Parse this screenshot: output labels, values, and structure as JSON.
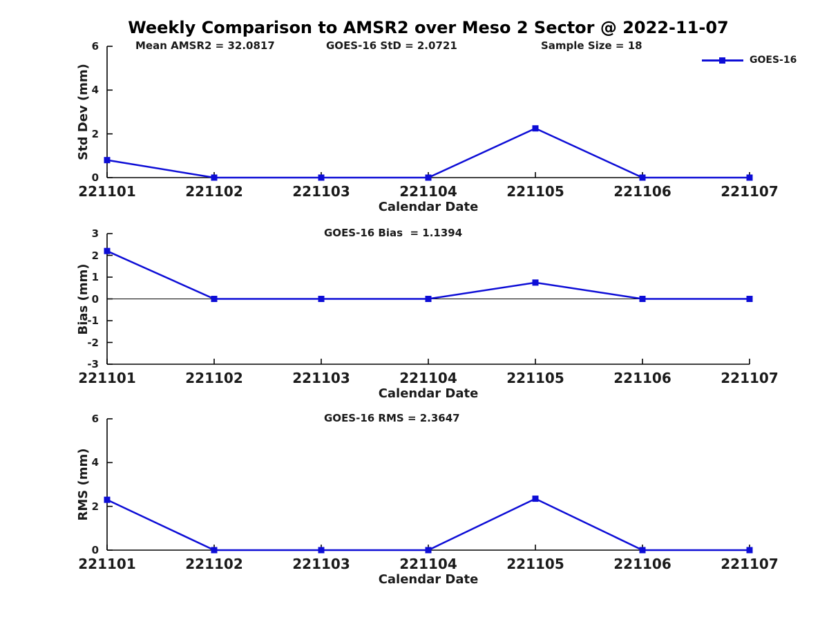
{
  "title": "Weekly Comparison to AMSR2 over Meso 2 Sector @ 2022-11-07",
  "legend": {
    "label": "GOES-16",
    "color": "#0d0dd6",
    "marker": "square-marker"
  },
  "colors": {
    "line": "#0d0dd6",
    "axis": "#000000",
    "text": "#1a1a1a"
  },
  "chart_data": [
    {
      "type": "line",
      "title": "Std Dev subplot",
      "annotations": [
        "Mean AMSR2 = 32.0817",
        "GOES-16 StD = 2.0721",
        "Sample Size = 18"
      ],
      "categories": [
        "221101",
        "221102",
        "221103",
        "221104",
        "221105",
        "221106",
        "221107"
      ],
      "series": [
        {
          "name": "GOES-16",
          "values": [
            0.8,
            0,
            0,
            0,
            2.25,
            0,
            0
          ]
        }
      ],
      "xlabel": "Calendar Date",
      "ylabel": "Std Dev (mm)",
      "ylim": [
        0,
        6
      ],
      "yticks": [
        0,
        2,
        4,
        6
      ],
      "zero_line": false,
      "legend_position": "top-right",
      "grid": false,
      "marker": "square"
    },
    {
      "type": "line",
      "title": "Bias subplot",
      "annotations": [
        "GOES-16 Bias  = 1.1394"
      ],
      "categories": [
        "221101",
        "221102",
        "221103",
        "221104",
        "221105",
        "221106",
        "221107"
      ],
      "series": [
        {
          "name": "GOES-16",
          "values": [
            2.2,
            0,
            0,
            0,
            0.75,
            0,
            0
          ]
        }
      ],
      "xlabel": "Calendar Date",
      "ylabel": "Bias (mm)",
      "ylim": [
        -3,
        3
      ],
      "yticks": [
        -3,
        -2,
        -1,
        0,
        1,
        2,
        3
      ],
      "zero_line": true,
      "legend_position": "none",
      "grid": false,
      "marker": "square"
    },
    {
      "type": "line",
      "title": "RMS subplot",
      "annotations": [
        "GOES-16 RMS = 2.3647"
      ],
      "categories": [
        "221101",
        "221102",
        "221103",
        "221104",
        "221105",
        "221106",
        "221107"
      ],
      "series": [
        {
          "name": "GOES-16",
          "values": [
            2.3,
            0,
            0,
            0,
            2.35,
            0,
            0
          ]
        }
      ],
      "xlabel": "Calendar Date",
      "ylabel": "RMS (mm)",
      "ylim": [
        0,
        6
      ],
      "yticks": [
        0,
        2,
        4,
        6
      ],
      "zero_line": false,
      "legend_position": "none",
      "grid": false,
      "marker": "square"
    }
  ]
}
